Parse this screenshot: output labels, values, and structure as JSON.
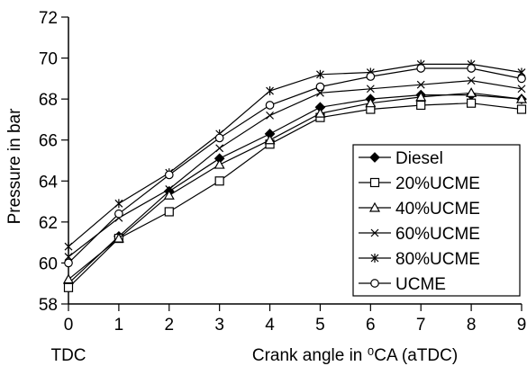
{
  "chart_data": {
    "type": "line",
    "xlabel": "Crank angle in ⁰CA (aTDC)",
    "x_note": "TDC",
    "ylabel": "Pressure in bar",
    "xlim": [
      0,
      9
    ],
    "ylim": [
      58,
      72
    ],
    "x_ticks": [
      0,
      1,
      2,
      3,
      4,
      5,
      6,
      7,
      8,
      9
    ],
    "y_ticks": [
      58,
      60,
      62,
      64,
      66,
      68,
      70,
      72
    ],
    "grid": false,
    "legend_position": "bottom-right",
    "x": [
      0,
      1,
      2,
      3,
      4,
      5,
      6,
      7,
      8,
      9
    ],
    "series": [
      {
        "name": "Diesel",
        "marker": "diamond-filled",
        "values": [
          59.0,
          61.3,
          63.5,
          65.1,
          66.3,
          67.6,
          68.0,
          68.2,
          68.2,
          68.0
        ]
      },
      {
        "name": "20%UCME",
        "marker": "square-open",
        "values": [
          58.8,
          61.2,
          62.5,
          64.0,
          65.8,
          67.1,
          67.5,
          67.7,
          67.8,
          67.5
        ]
      },
      {
        "name": "40%UCME",
        "marker": "triangle-open",
        "values": [
          59.2,
          61.2,
          63.3,
          64.8,
          66.0,
          67.3,
          67.8,
          68.1,
          68.3,
          68.0
        ]
      },
      {
        "name": "60%UCME",
        "marker": "x",
        "values": [
          60.3,
          62.2,
          63.6,
          65.6,
          67.2,
          68.3,
          68.5,
          68.7,
          68.9,
          68.5
        ]
      },
      {
        "name": "80%UCME",
        "marker": "star",
        "values": [
          60.8,
          62.9,
          64.4,
          66.3,
          68.4,
          69.2,
          69.3,
          69.7,
          69.7,
          69.3
        ]
      },
      {
        "name": "UCME",
        "marker": "circle-open",
        "values": [
          60.0,
          62.4,
          64.3,
          66.1,
          67.7,
          68.6,
          69.1,
          69.5,
          69.5,
          69.0
        ]
      }
    ]
  }
}
